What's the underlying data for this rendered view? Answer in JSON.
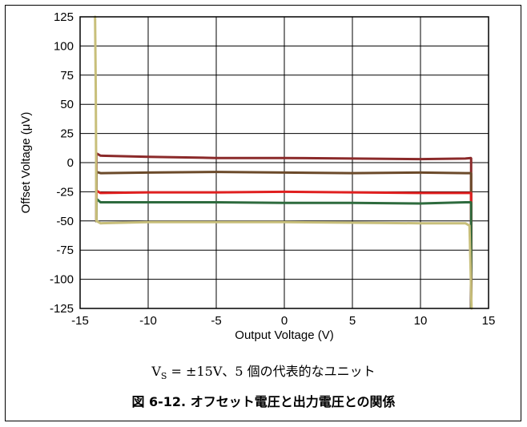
{
  "chart_data": {
    "type": "line",
    "title": "",
    "xlabel": "Output Voltage (V)",
    "ylabel": "Offset Voltage (μV)",
    "xlim": [
      -15,
      15
    ],
    "ylim": [
      -125,
      125
    ],
    "xticks": [
      -15,
      -10,
      -5,
      0,
      5,
      10,
      15
    ],
    "yticks": [
      125,
      100,
      75,
      50,
      25,
      0,
      -25,
      -50,
      -75,
      -100,
      -125
    ],
    "grid": true,
    "series": [
      {
        "color": "#8b2a2a",
        "points": [
          [
            -13.8,
            8
          ],
          [
            -13.5,
            6
          ],
          [
            -10,
            5
          ],
          [
            -5,
            4
          ],
          [
            0,
            4
          ],
          [
            5,
            3.5
          ],
          [
            10,
            3
          ],
          [
            13.3,
            3.5
          ],
          [
            13.7,
            4
          ]
        ]
      },
      {
        "color": "#6b4a2a",
        "points": [
          [
            -13.8,
            -8
          ],
          [
            -13.5,
            -9
          ],
          [
            -10,
            -8.5
          ],
          [
            -5,
            -8
          ],
          [
            0,
            -8.5
          ],
          [
            5,
            -9
          ],
          [
            10,
            -8.5
          ],
          [
            13.3,
            -9
          ],
          [
            13.7,
            -9
          ]
        ]
      },
      {
        "color": "#e02020",
        "points": [
          [
            -13.8,
            -24
          ],
          [
            -13.5,
            -26
          ],
          [
            -10,
            -25.5
          ],
          [
            -5,
            -25.5
          ],
          [
            0,
            -25
          ],
          [
            5,
            -25.5
          ],
          [
            10,
            -26
          ],
          [
            13.3,
            -26
          ],
          [
            13.7,
            -26
          ]
        ]
      },
      {
        "color": "#2e6b3e",
        "points": [
          [
            -13.8,
            -31
          ],
          [
            -13.5,
            -34
          ],
          [
            -10,
            -34
          ],
          [
            -5,
            -34
          ],
          [
            0,
            -34.5
          ],
          [
            5,
            -34.5
          ],
          [
            10,
            -35
          ],
          [
            13.3,
            -34
          ],
          [
            13.7,
            -34
          ]
        ]
      },
      {
        "color": "#c8bf7a",
        "points": [
          [
            -13.9,
            125
          ],
          [
            -13.85,
            60
          ],
          [
            -13.8,
            -50
          ],
          [
            -13.5,
            -52
          ],
          [
            -10,
            -51
          ],
          [
            -5,
            -51
          ],
          [
            0,
            -51
          ],
          [
            5,
            -51.5
          ],
          [
            10,
            -52
          ],
          [
            13.3,
            -52
          ],
          [
            13.6,
            -54
          ],
          [
            13.75,
            -125
          ]
        ]
      }
    ],
    "edge_drops": {
      "x_left": -13.8,
      "x_right": 13.72
    }
  },
  "condition": {
    "prefix": "V",
    "subscript": "S",
    "rest": " = ±15V、5 個の代表的なユニット"
  },
  "caption": "図 6-12. オフセット電圧と出力電圧との関係"
}
